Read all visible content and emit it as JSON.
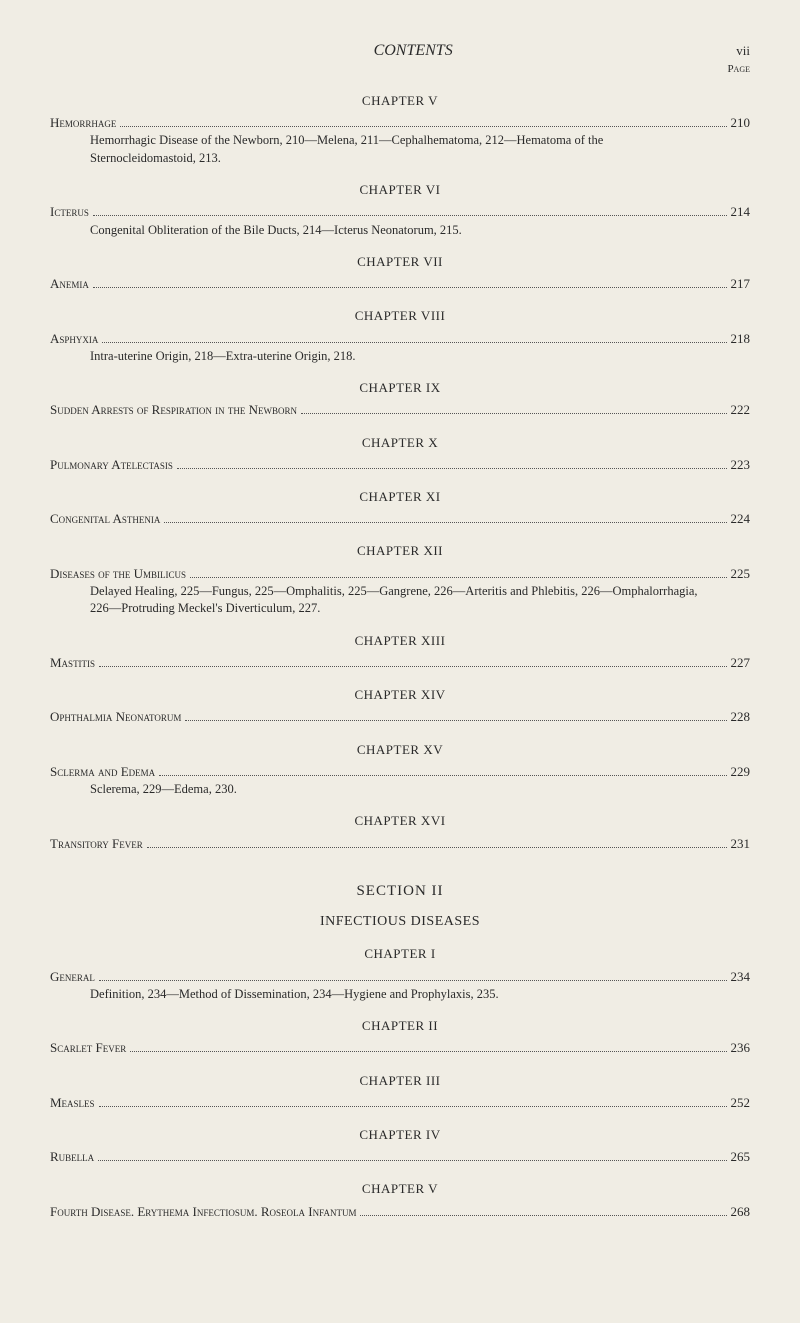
{
  "header": {
    "contents_label": "CONTENTS",
    "page_roman": "vii",
    "page_label": "Page"
  },
  "chapters": [
    {
      "heading": "CHAPTER V",
      "title": "Hemorrhage",
      "page": "210",
      "desc": "Hemorrhagic Disease of the Newborn, 210—Melena, 211—Cephalhematoma, 212—Hematoma of the Sternocleidomastoid, 213."
    },
    {
      "heading": "CHAPTER VI",
      "title": "Icterus",
      "page": "214",
      "desc": "Congenital Obliteration of the Bile Ducts, 214—Icterus Neonatorum, 215."
    },
    {
      "heading": "CHAPTER VII",
      "title": "Anemia",
      "page": "217",
      "desc": ""
    },
    {
      "heading": "CHAPTER VIII",
      "title": "Asphyxia",
      "page": "218",
      "desc": "Intra-uterine Origin, 218—Extra-uterine Origin, 218."
    },
    {
      "heading": "CHAPTER IX",
      "title": "Sudden Arrests of Respiration in the Newborn",
      "page": "222",
      "desc": ""
    },
    {
      "heading": "CHAPTER X",
      "title": "Pulmonary Atelectasis",
      "page": "223",
      "desc": ""
    },
    {
      "heading": "CHAPTER XI",
      "title": "Congenital Asthenia",
      "page": "224",
      "desc": ""
    },
    {
      "heading": "CHAPTER XII",
      "title": "Diseases of the Umbilicus",
      "page": "225",
      "desc": "Delayed Healing, 225—Fungus, 225—Omphalitis, 225—Gangrene, 226—Arteritis and Phlebitis, 226—Omphalorrhagia, 226—Protruding Meckel's Diverticulum, 227."
    },
    {
      "heading": "CHAPTER XIII",
      "title": "Mastitis",
      "page": "227",
      "desc": ""
    },
    {
      "heading": "CHAPTER XIV",
      "title": "Ophthalmia Neonatorum",
      "page": "228",
      "desc": ""
    },
    {
      "heading": "CHAPTER XV",
      "title": "Sclerma and Edema",
      "page": "229",
      "desc": "Sclerema, 229—Edema, 230."
    },
    {
      "heading": "CHAPTER XVI",
      "title": "Transitory Fever",
      "page": "231",
      "desc": ""
    }
  ],
  "section2": {
    "heading": "SECTION II",
    "subheading": "INFECTIOUS DISEASES",
    "chapters": [
      {
        "heading": "CHAPTER I",
        "title": "General",
        "page": "234",
        "desc": "Definition, 234—Method of Dissemination, 234—Hygiene and Prophylaxis, 235."
      },
      {
        "heading": "CHAPTER II",
        "title": "Scarlet Fever",
        "page": "236",
        "desc": ""
      },
      {
        "heading": "CHAPTER III",
        "title": "Measles",
        "page": "252",
        "desc": ""
      },
      {
        "heading": "CHAPTER IV",
        "title": "Rubella",
        "page": "265",
        "desc": ""
      },
      {
        "heading": "CHAPTER V",
        "title": "Fourth Disease.  Erythema Infectiosum.  Roseola Infantum",
        "page": "268",
        "desc": ""
      }
    ]
  },
  "styling": {
    "background_color": "#f0ede4",
    "text_color": "#2a2a2a",
    "base_fontsize": 13,
    "chapter_heading_fontsize": 13,
    "section_heading_fontsize": 15,
    "desc_fontsize": 12.5
  }
}
